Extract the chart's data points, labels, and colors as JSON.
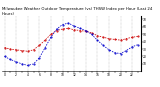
{
  "title": "Milwaukee Weather Outdoor Temperature (vs) THSW Index per Hour (Last 24 Hours)",
  "hours": [
    0,
    1,
    2,
    3,
    4,
    5,
    6,
    7,
    8,
    9,
    10,
    11,
    12,
    13,
    14,
    15,
    16,
    17,
    18,
    19,
    20,
    21,
    22,
    23
  ],
  "temp": [
    32,
    30,
    29,
    28,
    27,
    29,
    35,
    42,
    50,
    55,
    57,
    58,
    56,
    55,
    54,
    52,
    48,
    46,
    44,
    43,
    42,
    44,
    46,
    47
  ],
  "thsw": [
    20,
    16,
    13,
    10,
    8,
    10,
    18,
    32,
    46,
    57,
    63,
    65,
    61,
    58,
    55,
    50,
    42,
    35,
    29,
    25,
    24,
    28,
    33,
    36
  ],
  "temp_color": "#cc0000",
  "thsw_color": "#0000cc",
  "background": "#ffffff",
  "ylim_min": 0,
  "ylim_max": 75,
  "yticks": [
    10,
    20,
    30,
    40,
    50,
    60,
    70
  ],
  "grid_color": "#888888",
  "title_fontsize": 2.8,
  "tick_fontsize": 2.2,
  "line_width": 0.55,
  "marker_size": 1.0
}
